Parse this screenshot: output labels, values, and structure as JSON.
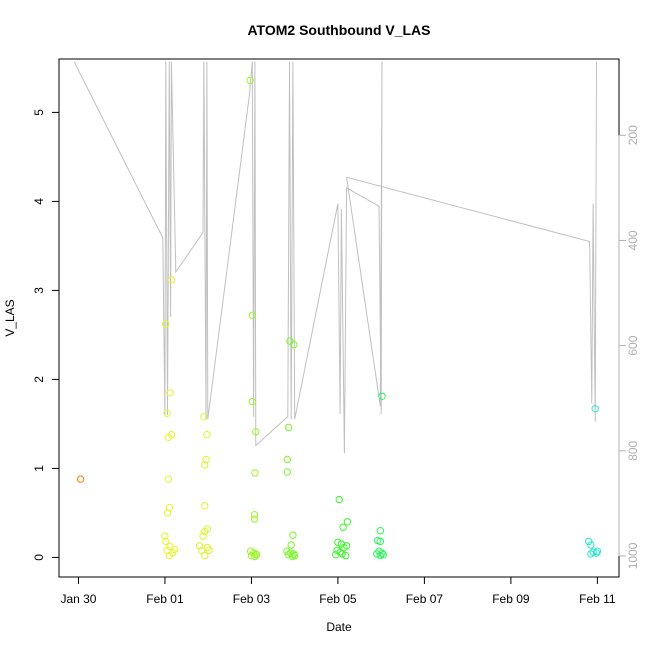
{
  "chart_data": {
    "type": "scatter",
    "title": "ATOM2 Southbound V_LAS",
    "xlabel": "Date",
    "ylabel": "V_LAS",
    "x_tick_labels": [
      "Jan 30",
      "Feb 01",
      "Feb 03",
      "Feb 05",
      "Feb 07",
      "Feb 09",
      "Feb 11"
    ],
    "y_tick_labels": [
      "0",
      "1",
      "2",
      "3",
      "4",
      "5"
    ],
    "y2_tick_labels": [
      "200",
      "400",
      "600",
      "800",
      "1000"
    ],
    "xlim": [
      -1.45,
      11.5
    ],
    "ylim": [
      -0.22,
      5.6
    ],
    "y2lim": [
      1040,
      55
    ],
    "grid": false,
    "point_color_scale": [
      "#ff7f00",
      "#ffff00",
      "#80ff00",
      "#00ff00",
      "#00ffcc"
    ],
    "line_color": "#c0c0c0",
    "points": [
      {
        "x": -0.95,
        "y": 0.88,
        "color": "#ff7f00"
      },
      {
        "x": 1.02,
        "y": 2.62,
        "color": "#e6f52a"
      },
      {
        "x": 1.15,
        "y": 3.12,
        "color": "#e6f52a"
      },
      {
        "x": 1.12,
        "y": 1.85,
        "color": "#e6f52a"
      },
      {
        "x": 1.05,
        "y": 1.62,
        "color": "#e6f52a"
      },
      {
        "x": 1.15,
        "y": 1.38,
        "color": "#e6f52a"
      },
      {
        "x": 1.08,
        "y": 1.35,
        "color": "#e6f52a"
      },
      {
        "x": 1.08,
        "y": 0.88,
        "color": "#e6f52a"
      },
      {
        "x": 1.1,
        "y": 0.56,
        "color": "#e6f52a"
      },
      {
        "x": 1.06,
        "y": 0.5,
        "color": "#e6f52a"
      },
      {
        "x": 1.0,
        "y": 0.24,
        "color": "#e6f52a"
      },
      {
        "x": 1.02,
        "y": 0.18,
        "color": "#e6f52a"
      },
      {
        "x": 1.12,
        "y": 0.12,
        "color": "#e6f52a"
      },
      {
        "x": 1.05,
        "y": 0.08,
        "color": "#e6f52a"
      },
      {
        "x": 1.22,
        "y": 0.09,
        "color": "#e6f52a"
      },
      {
        "x": 1.18,
        "y": 0.05,
        "color": "#e6f52a"
      },
      {
        "x": 1.1,
        "y": 0.02,
        "color": "#e6f52a"
      },
      {
        "x": 1.9,
        "y": 1.58,
        "color": "#dcf52a"
      },
      {
        "x": 1.97,
        "y": 1.38,
        "color": "#dcf52a"
      },
      {
        "x": 1.95,
        "y": 1.1,
        "color": "#dcf52a"
      },
      {
        "x": 1.92,
        "y": 1.04,
        "color": "#dcf52a"
      },
      {
        "x": 1.92,
        "y": 0.58,
        "color": "#dcf52a"
      },
      {
        "x": 1.98,
        "y": 0.32,
        "color": "#dcf52a"
      },
      {
        "x": 1.92,
        "y": 0.29,
        "color": "#dcf52a"
      },
      {
        "x": 1.88,
        "y": 0.24,
        "color": "#dcf52a"
      },
      {
        "x": 1.8,
        "y": 0.13,
        "color": "#dcf52a"
      },
      {
        "x": 1.98,
        "y": 0.11,
        "color": "#dcf52a"
      },
      {
        "x": 1.85,
        "y": 0.08,
        "color": "#dcf52a"
      },
      {
        "x": 1.92,
        "y": 0.02,
        "color": "#dcf52a"
      },
      {
        "x": 2.02,
        "y": 0.08,
        "color": "#dcf52a"
      },
      {
        "x": 2.97,
        "y": 5.36,
        "color": "#9cf52a"
      },
      {
        "x": 3.02,
        "y": 2.72,
        "color": "#9cf52a"
      },
      {
        "x": 3.02,
        "y": 1.75,
        "color": "#9cf52a"
      },
      {
        "x": 3.1,
        "y": 1.41,
        "color": "#9cf52a"
      },
      {
        "x": 3.08,
        "y": 0.95,
        "color": "#9cf52a"
      },
      {
        "x": 3.07,
        "y": 0.48,
        "color": "#9cf52a"
      },
      {
        "x": 3.07,
        "y": 0.43,
        "color": "#9cf52a"
      },
      {
        "x": 2.98,
        "y": 0.07,
        "color": "#9cf52a"
      },
      {
        "x": 3.05,
        "y": 0.05,
        "color": "#9cf52a"
      },
      {
        "x": 3.1,
        "y": 0.04,
        "color": "#9cf52a"
      },
      {
        "x": 3.0,
        "y": 0.02,
        "color": "#9cf52a"
      },
      {
        "x": 3.08,
        "y": 0.01,
        "color": "#9cf52a"
      },
      {
        "x": 3.12,
        "y": 0.03,
        "color": "#9cf52a"
      },
      {
        "x": 3.89,
        "y": 2.43,
        "color": "#7cf52a"
      },
      {
        "x": 3.98,
        "y": 2.39,
        "color": "#7cf52a"
      },
      {
        "x": 3.86,
        "y": 1.46,
        "color": "#7cf52a"
      },
      {
        "x": 3.83,
        "y": 1.1,
        "color": "#7cf52a"
      },
      {
        "x": 3.83,
        "y": 0.96,
        "color": "#7cf52a"
      },
      {
        "x": 3.96,
        "y": 0.25,
        "color": "#7cf52a"
      },
      {
        "x": 3.92,
        "y": 0.14,
        "color": "#7cf52a"
      },
      {
        "x": 3.82,
        "y": 0.07,
        "color": "#7cf52a"
      },
      {
        "x": 3.9,
        "y": 0.05,
        "color": "#7cf52a"
      },
      {
        "x": 3.98,
        "y": 0.04,
        "color": "#7cf52a"
      },
      {
        "x": 3.85,
        "y": 0.03,
        "color": "#7cf52a"
      },
      {
        "x": 4.0,
        "y": 0.02,
        "color": "#7cf52a"
      },
      {
        "x": 3.95,
        "y": 0.01,
        "color": "#7cf52a"
      },
      {
        "x": 5.03,
        "y": 0.65,
        "color": "#3cf52a"
      },
      {
        "x": 5.22,
        "y": 0.4,
        "color": "#3cf52a"
      },
      {
        "x": 5.12,
        "y": 0.34,
        "color": "#3cf52a"
      },
      {
        "x": 5.0,
        "y": 0.17,
        "color": "#3cf52a"
      },
      {
        "x": 5.08,
        "y": 0.15,
        "color": "#3cf52a"
      },
      {
        "x": 5.2,
        "y": 0.13,
        "color": "#3cf52a"
      },
      {
        "x": 5.14,
        "y": 0.11,
        "color": "#3cf52a"
      },
      {
        "x": 4.98,
        "y": 0.08,
        "color": "#3cf52a"
      },
      {
        "x": 5.05,
        "y": 0.06,
        "color": "#3cf52a"
      },
      {
        "x": 5.1,
        "y": 0.04,
        "color": "#3cf52a"
      },
      {
        "x": 4.95,
        "y": 0.03,
        "color": "#3cf52a"
      },
      {
        "x": 5.18,
        "y": 0.02,
        "color": "#3cf52a"
      },
      {
        "x": 6.02,
        "y": 1.81,
        "color": "#2af55a"
      },
      {
        "x": 5.98,
        "y": 0.3,
        "color": "#2af55a"
      },
      {
        "x": 5.92,
        "y": 0.19,
        "color": "#2af55a"
      },
      {
        "x": 5.98,
        "y": 0.18,
        "color": "#2af55a"
      },
      {
        "x": 5.95,
        "y": 0.07,
        "color": "#2af55a"
      },
      {
        "x": 6.02,
        "y": 0.05,
        "color": "#2af55a"
      },
      {
        "x": 5.9,
        "y": 0.04,
        "color": "#2af55a"
      },
      {
        "x": 6.05,
        "y": 0.03,
        "color": "#2af55a"
      },
      {
        "x": 5.98,
        "y": 0.02,
        "color": "#2af55a"
      },
      {
        "x": 10.95,
        "y": 1.67,
        "color": "#2ae6c8"
      },
      {
        "x": 10.8,
        "y": 0.18,
        "color": "#2ae6c8"
      },
      {
        "x": 10.85,
        "y": 0.14,
        "color": "#2ae6c8"
      },
      {
        "x": 10.9,
        "y": 0.06,
        "color": "#2ae6c8"
      },
      {
        "x": 10.98,
        "y": 0.05,
        "color": "#2ae6c8"
      },
      {
        "x": 10.85,
        "y": 0.04,
        "color": "#2ae6c8"
      },
      {
        "x": 11.0,
        "y": 0.07,
        "color": "#2ae6c8"
      }
    ],
    "depth_line": [
      [
        -1.1,
        60
      ],
      [
        0.95,
        395
      ],
      [
        1.0,
        732
      ],
      [
        1.02,
        60
      ],
      [
        1.06,
        732
      ],
      [
        1.1,
        60
      ],
      [
        1.13,
        545
      ],
      [
        1.15,
        60
      ],
      [
        1.25,
        460
      ],
      [
        1.88,
        385
      ],
      [
        1.9,
        60
      ],
      [
        1.95,
        740
      ],
      [
        1.97,
        60
      ],
      [
        1.99,
        740
      ],
      [
        2.95,
        125
      ],
      [
        3.02,
        60
      ],
      [
        3.05,
        735
      ],
      [
        3.08,
        60
      ],
      [
        3.1,
        790
      ],
      [
        3.84,
        735
      ],
      [
        3.88,
        60
      ],
      [
        3.92,
        740
      ],
      [
        3.96,
        60
      ],
      [
        4.0,
        740
      ],
      [
        5.0,
        330
      ],
      [
        5.05,
        730
      ],
      [
        5.08,
        340
      ],
      [
        5.15,
        805
      ],
      [
        5.2,
        300
      ],
      [
        5.95,
        335
      ],
      [
        6.0,
        730
      ],
      [
        6.02,
        60
      ],
      [
        5.98,
        715
      ],
      [
        5.2,
        280
      ],
      [
        10.82,
        402
      ],
      [
        10.87,
        710
      ],
      [
        10.9,
        330
      ],
      [
        10.95,
        745
      ],
      [
        10.98,
        60
      ]
    ]
  }
}
